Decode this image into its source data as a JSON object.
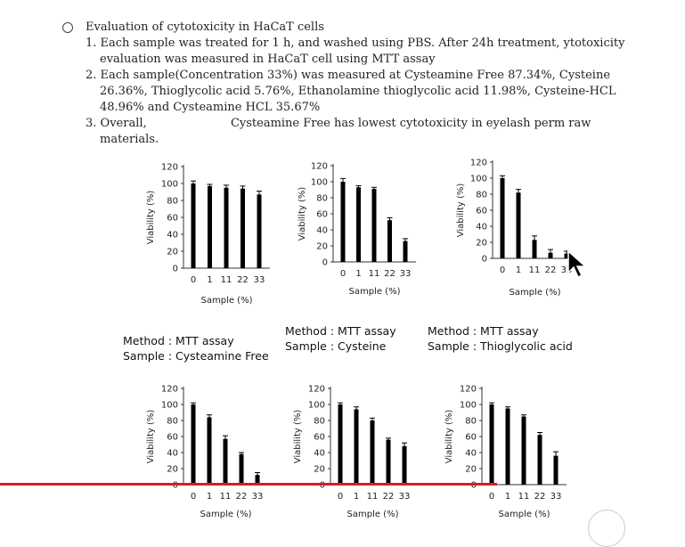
{
  "text": {
    "heading": "Evaluation of cytotoxicity in HaCaT cells",
    "item1": "1. Each sample was treated for 1 h, and washed using PBS. After 24h treatment, ytotoxicity evaluation was measured in HaCaT cell using MTT assay",
    "item2": "2. Each sample(Concentration 33%) was measured at Cysteamine Free 87.34%, Cysteine 26.36%, Thioglycolic acid 5.76%, Ethanolamine thioglycolic acid 11.98%, Cysteine-HCL 48.96% and Cysteamine HCL 35.67%",
    "item3a": "3. Overall,",
    "item3b": "Cysteamine Free has lowest cytotoxicity in eyelash perm raw materials."
  },
  "labels": [
    {
      "method": "Method : MTT assay",
      "sample": "Sample : Cysteamine Free"
    },
    {
      "method": "Method : MTT assay",
      "sample": "Sample : Cysteine"
    },
    {
      "method": "Method : MTT assay",
      "sample": "Sample : Thioglycolic acid"
    }
  ],
  "chart_data": [
    {
      "type": "bar",
      "categories": [
        "0",
        "1",
        "11",
        "22",
        "33"
      ],
      "values": [
        100,
        97,
        95,
        94,
        87
      ],
      "errors": [
        3,
        2,
        3,
        3,
        4
      ],
      "xlabel": "Sample (%)",
      "ylabel": "Viability (%)",
      "ylim": [
        0,
        120
      ],
      "yticks": [
        0,
        20,
        40,
        60,
        80,
        100,
        120
      ]
    },
    {
      "type": "bar",
      "categories": [
        "0",
        "1",
        "11",
        "22",
        "33"
      ],
      "values": [
        100,
        93,
        91,
        52,
        26
      ],
      "errors": [
        4,
        2,
        2,
        3,
        3
      ],
      "xlabel": "Sample (%)",
      "ylabel": "Viability (%)",
      "ylim": [
        0,
        120
      ],
      "yticks": [
        0,
        20,
        40,
        60,
        80,
        100,
        120
      ]
    },
    {
      "type": "bar",
      "categories": [
        "0",
        "1",
        "11",
        "22",
        "33"
      ],
      "values": [
        100,
        82,
        23,
        7,
        6
      ],
      "errors": [
        3,
        4,
        5,
        4,
        3
      ],
      "xlabel": "Sample (%)",
      "ylabel": "Viability (%)",
      "ylim": [
        0,
        120
      ],
      "yticks": [
        0,
        20,
        40,
        60,
        80,
        100,
        120
      ]
    },
    {
      "type": "bar",
      "categories": [
        "0",
        "1",
        "11",
        "22",
        "33"
      ],
      "values": [
        100,
        84,
        57,
        38,
        12
      ],
      "errors": [
        2,
        3,
        4,
        2,
        3
      ],
      "xlabel": "Sample (%)",
      "ylabel": "Viability (%)",
      "ylim": [
        0,
        120
      ],
      "yticks": [
        0,
        20,
        40,
        60,
        80,
        100,
        120
      ]
    },
    {
      "type": "bar",
      "categories": [
        "0",
        "1",
        "11",
        "22",
        "33"
      ],
      "values": [
        100,
        94,
        80,
        56,
        48
      ],
      "errors": [
        2,
        3,
        3,
        2,
        4
      ],
      "xlabel": "Sample (%)",
      "ylabel": "Viability (%)",
      "ylim": [
        0,
        120
      ],
      "yticks": [
        0,
        20,
        40,
        60,
        80,
        100,
        120
      ]
    },
    {
      "type": "bar",
      "categories": [
        "0",
        "1",
        "11",
        "22",
        "33"
      ],
      "values": [
        100,
        95,
        85,
        62,
        36
      ],
      "errors": [
        2,
        2,
        2,
        3,
        5
      ],
      "xlabel": "Sample (%)",
      "ylabel": "Viability (%)",
      "ylim": [
        0,
        120
      ],
      "yticks": [
        0,
        20,
        40,
        60,
        80,
        100,
        120
      ]
    }
  ]
}
